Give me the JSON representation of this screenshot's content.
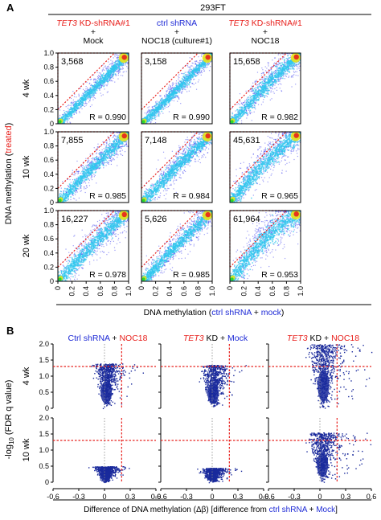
{
  "figure": {
    "panel_a_letter": "A",
    "panel_b_letter": "B",
    "cell_line": "293FT"
  },
  "colors": {
    "red": "#e8201c",
    "blue": "#1f2bd6",
    "density_low": "#3a3cf0",
    "density_mid": "#31c8ee",
    "density_high": "#e8e418",
    "density_peak": "#e8201c",
    "volcano": "#1a2a9c",
    "threshold": "#e8201c"
  },
  "panel_a": {
    "columns": [
      {
        "line1_part1": "TET3",
        "line1_part2": " KD-shRNA#1",
        "plus": "+",
        "line2": "Mock",
        "line2_color": "blue"
      },
      {
        "line1_part1": "ctrl shRNA",
        "line1_part2": "",
        "plus": "+",
        "line2": "NOC18 (culture#1)",
        "line2_color": "red"
      },
      {
        "line1_part1": "TET3",
        "line1_part2": " KD-shRNA#1",
        "plus": "+",
        "line2": "NOC18",
        "line2_color": "red"
      }
    ],
    "rows": [
      "4 wk",
      "10 wk",
      "20 wk"
    ],
    "ylabel_part1": "DNA methylation (",
    "ylabel_part2": "treated",
    "ylabel_part3": ")",
    "xlabel_part1": "DNA methylation (",
    "xlabel_part2": "ctrl shRNA",
    "xlabel_part3": " + ",
    "xlabel_part4": "mock",
    "xlabel_part5": ")"
  },
  "panel_b": {
    "titles": [
      {
        "part1": "Ctrl shRNA",
        "part1_color": "blue",
        "part2": " + ",
        "part3": "NOC18",
        "part3_color": "red"
      },
      {
        "part1": "TET3",
        "part1_color": "red",
        "part1_italic": true,
        "part2": " KD + ",
        "part3": "Mock",
        "part3_color": "blue"
      },
      {
        "part1": "TET3",
        "part1_color": "red",
        "part1_italic": true,
        "part2": " KD + ",
        "part3": "NOC18",
        "part3_color": "red"
      }
    ],
    "rows": [
      "4 wk",
      "10 wk"
    ],
    "ylabel": "-log10 (FDR q value)",
    "ylabel_main": "-log",
    "ylabel_sub": "10",
    "ylabel_rest": " (FDR q value)",
    "xlabel_part1": "Difference of DNA methylation (Δβ) [difference from ",
    "xlabel_part2": "ctrl shRNA",
    "xlabel_part3": " + ",
    "xlabel_part4": "Mock",
    "xlabel_part5": "]"
  },
  "chart_data": [
    {
      "type": "heatmap",
      "subtype": "density-scatter",
      "xlim": [
        0,
        1.0
      ],
      "ylim": [
        0,
        1.0
      ],
      "ticks": [
        "0",
        "0.2",
        "0.4",
        "0.6",
        "0.8",
        "1.0"
      ],
      "tick_values": [
        0,
        0.2,
        0.4,
        0.6,
        0.8,
        1.0
      ],
      "threshold_line": {
        "from": [
          0,
          0.2
        ],
        "to": [
          0.8,
          1.0
        ]
      },
      "panels": [
        {
          "row": 0,
          "col": 0,
          "count": "3,568",
          "r": "R = 0.990",
          "spread": 0.035,
          "upper": 0.0
        },
        {
          "row": 0,
          "col": 1,
          "count": "3,158",
          "r": "R = 0.990",
          "spread": 0.035,
          "upper": 0.0
        },
        {
          "row": 0,
          "col": 2,
          "count": "15,658",
          "r": "R = 0.982",
          "spread": 0.05,
          "upper": 0.04
        },
        {
          "row": 1,
          "col": 0,
          "count": "7,855",
          "r": "R = 0.985",
          "spread": 0.045,
          "upper": 0.02
        },
        {
          "row": 1,
          "col": 1,
          "count": "7,148",
          "r": "R = 0.984",
          "spread": 0.045,
          "upper": 0.02
        },
        {
          "row": 1,
          "col": 2,
          "count": "45,631",
          "r": "R = 0.965",
          "spread": 0.06,
          "upper": 0.08
        },
        {
          "row": 2,
          "col": 0,
          "count": "16,227",
          "r": "R = 0.978",
          "spread": 0.055,
          "upper": 0.04
        },
        {
          "row": 2,
          "col": 1,
          "count": "5,626",
          "r": "R = 0.985",
          "spread": 0.045,
          "upper": 0.02
        },
        {
          "row": 2,
          "col": 2,
          "count": "61,964",
          "r": "R = 0.953",
          "spread": 0.07,
          "upper": 0.11
        }
      ]
    },
    {
      "type": "scatter",
      "subtype": "volcano",
      "xlim": [
        -0.6,
        0.6
      ],
      "ylim": [
        0,
        2.0
      ],
      "xticks": [
        "-0.6",
        "-0.3",
        "0",
        "0.3",
        "0.6"
      ],
      "xtick_values": [
        -0.6,
        -0.3,
        0,
        0.3,
        0.6
      ],
      "yticks": [
        "0",
        "0.5",
        "1.0",
        "1.5",
        "2.0"
      ],
      "ytick_values": [
        0,
        0.5,
        1.0,
        1.5,
        2.0
      ],
      "threshold_x": 0.2,
      "threshold_y": 1.3,
      "panels": [
        {
          "row": 0,
          "col": 0,
          "ymax": 1.4,
          "shift": 0.02,
          "width": 0.14,
          "right_tail": 0.1
        },
        {
          "row": 0,
          "col": 1,
          "ymax": 1.35,
          "shift": 0.01,
          "width": 0.15,
          "right_tail": 0.08
        },
        {
          "row": 0,
          "col": 2,
          "ymax": 2.0,
          "shift": 0.04,
          "width": 0.18,
          "right_tail": 0.35
        },
        {
          "row": 1,
          "col": 0,
          "ymax": 0.5,
          "shift": 0.01,
          "width": 0.13,
          "right_tail": 0.05
        },
        {
          "row": 1,
          "col": 1,
          "ymax": 0.45,
          "shift": 0.0,
          "width": 0.14,
          "right_tail": 0.05
        },
        {
          "row": 1,
          "col": 2,
          "ymax": 1.55,
          "shift": 0.03,
          "width": 0.17,
          "right_tail": 0.3
        }
      ]
    }
  ]
}
